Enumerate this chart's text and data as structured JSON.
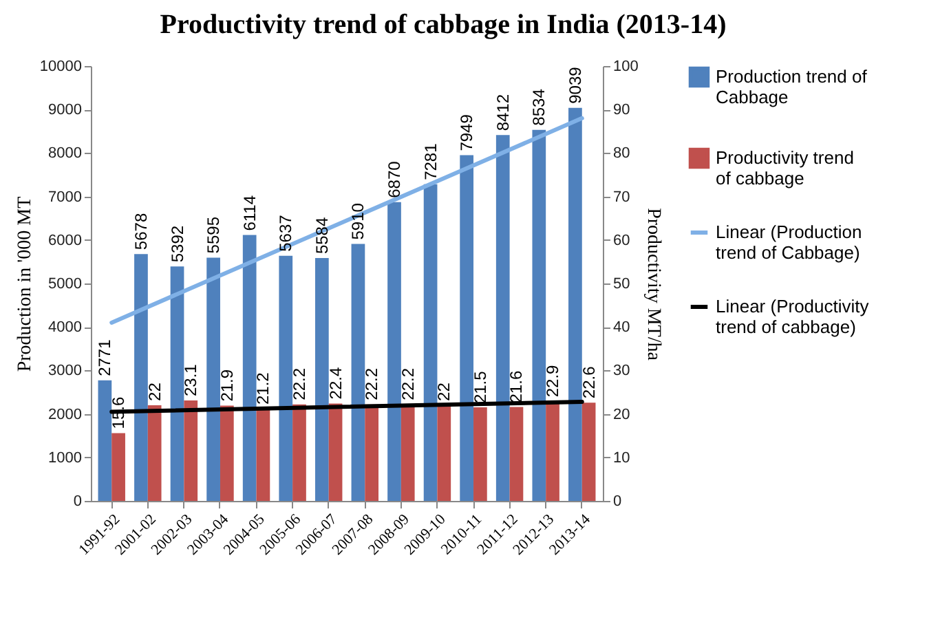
{
  "chart_data": {
    "type": "bar",
    "title": "Productivity trend of cabbage in India (2013-14)",
    "ylabel": "Production in '000 MT",
    "y2label": "Productivity MT/ha",
    "categories": [
      "1991-92",
      "2001-02",
      "2002-03",
      "2003-04",
      "2004-05",
      "2005-06",
      "2006-07",
      "2007-08",
      "2008-09",
      "2009-10",
      "2010-11",
      "2011-12",
      "2012-13",
      "2013-14"
    ],
    "series": [
      {
        "name": "Production trend of Cabbage",
        "color": "#4f81bd",
        "values": [
          2771,
          5678,
          5392,
          5595,
          6114,
          5637,
          5584,
          5910,
          6870,
          7281,
          7949,
          8412,
          8534,
          9039
        ],
        "value_labels": [
          "2771",
          "5678",
          "5392",
          "5595",
          "6114",
          "5637",
          "5584",
          "5910",
          "6870",
          "7281",
          "7949",
          "8412",
          "8534",
          "9039"
        ]
      },
      {
        "name": "Productivity trend of cabbage",
        "color": "#c0504d",
        "axis": "y2",
        "values": [
          15.6,
          22,
          23.1,
          21.9,
          21.2,
          22.2,
          22.4,
          22.2,
          22.2,
          22,
          21.5,
          21.6,
          22.9,
          22.6
        ],
        "value_labels": [
          "15.6",
          "22",
          "23.1",
          "21.9",
          "21.2",
          "22.2",
          "22.4",
          "22.2",
          "22.2",
          "22",
          "21.5",
          "21.6",
          "22.9",
          "22.6"
        ]
      },
      {
        "name": "Linear (Production trend of Cabbage)",
        "type": "line",
        "color": "#7fb0e6",
        "x": [
          "1991-92",
          "2013-14"
        ],
        "values": [
          4100,
          8800
        ]
      },
      {
        "name": "Linear (Productivity trend of cabbage)",
        "type": "line",
        "color": "#000000",
        "axis": "y2",
        "x": [
          "1991-92",
          "2013-14"
        ],
        "values": [
          20.5,
          22.8
        ]
      }
    ],
    "ylim": [
      0,
      10000
    ],
    "yticks": [
      0,
      1000,
      2000,
      3000,
      4000,
      5000,
      6000,
      7000,
      8000,
      9000,
      10000
    ],
    "y2lim": [
      0,
      100
    ],
    "y2ticks": [
      0,
      10,
      20,
      30,
      40,
      50,
      60,
      70,
      80,
      90,
      100
    ],
    "grid": false,
    "legend": "right"
  }
}
